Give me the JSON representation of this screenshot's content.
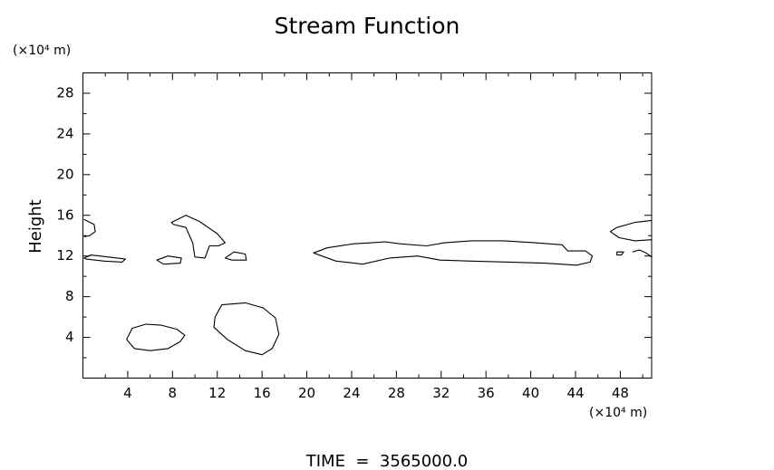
{
  "chart_data": {
    "type": "contour",
    "title": "Stream Function",
    "ylabel": "Height",
    "yunit": "(×10⁴ m)",
    "xunit": "(×10⁴ m)",
    "footer": "TIME  =  3565000.0",
    "xlim": [
      0,
      50.8
    ],
    "ylim": [
      0,
      30
    ],
    "xticks": [
      4,
      8,
      12,
      16,
      20,
      24,
      28,
      32,
      36,
      40,
      44,
      48
    ],
    "xminorticks": [
      2,
      6,
      10,
      14,
      18,
      22,
      26,
      30,
      34,
      38,
      42,
      46,
      50
    ],
    "yticks": [
      4,
      8,
      12,
      16,
      20,
      24,
      28
    ],
    "yminorticks": [
      2,
      6,
      10,
      14,
      18,
      22,
      26
    ],
    "color": "#000000",
    "contours": [
      {
        "closed": true,
        "x": [
          3.9,
          4.4,
          5.6,
          7.0,
          8.4,
          9.1,
          8.7,
          7.6,
          6.0,
          4.6
        ],
        "y": [
          3.8,
          4.9,
          5.3,
          5.2,
          4.8,
          4.2,
          3.6,
          2.9,
          2.7,
          2.9
        ]
      },
      {
        "closed": true,
        "x": [
          12.4,
          14.5,
          16.1,
          17.2,
          17.5,
          16.9,
          16.0,
          14.5,
          12.9,
          11.7,
          11.8
        ],
        "y": [
          7.2,
          7.4,
          6.9,
          5.9,
          4.3,
          2.9,
          2.3,
          2.7,
          3.8,
          5.0,
          6.0
        ]
      },
      {
        "closed": true,
        "x": [
          7.9,
          9.2,
          10.4,
          12.0,
          12.7,
          12.1,
          11.3,
          10.9,
          10.0,
          9.8,
          9.2,
          8.1
        ],
        "y": [
          15.3,
          16.0,
          15.4,
          14.2,
          13.3,
          13.0,
          13.0,
          11.8,
          11.9,
          13.3,
          14.8,
          15.1
        ]
      },
      {
        "closed": true,
        "x": [
          6.6,
          7.6,
          8.8,
          8.7,
          7.2
        ],
        "y": [
          11.6,
          12.0,
          11.8,
          11.3,
          11.2
        ]
      },
      {
        "closed": true,
        "x": [
          12.7,
          13.5,
          14.5,
          14.6,
          13.3
        ],
        "y": [
          11.8,
          12.4,
          12.2,
          11.6,
          11.6
        ]
      },
      {
        "closed": false,
        "x": [
          0.1,
          1.0,
          1.1,
          0.6,
          0.1
        ],
        "y": [
          15.6,
          15.1,
          14.4,
          14.0,
          13.9
        ]
      },
      {
        "closed": true,
        "x": [
          0.1,
          0.7,
          2.3,
          3.8,
          3.5,
          1.9,
          0.3
        ],
        "y": [
          11.8,
          12.1,
          11.9,
          11.7,
          11.4,
          11.5,
          11.7
        ]
      },
      {
        "closed": true,
        "x": [
          20.6,
          21.8,
          24.2,
          25.8,
          27.0,
          28.3,
          30.7,
          32.3,
          34.7,
          37.6,
          40.4,
          42.8,
          43.3,
          44.9,
          45.5,
          45.3,
          44.1,
          41.2,
          38.0,
          34.7,
          31.9,
          29.9,
          27.4,
          25.0,
          22.6
        ],
        "y": [
          12.3,
          12.8,
          13.2,
          13.3,
          13.4,
          13.2,
          13.0,
          13.3,
          13.5,
          13.5,
          13.3,
          13.1,
          12.5,
          12.5,
          12.0,
          11.4,
          11.1,
          11.3,
          11.4,
          11.5,
          11.6,
          12.0,
          11.8,
          11.2,
          11.5
        ]
      },
      {
        "closed": false,
        "x": [
          50.8,
          49.3,
          47.7,
          47.1,
          47.9,
          49.3,
          50.8
        ],
        "y": [
          15.5,
          15.3,
          14.8,
          14.4,
          13.8,
          13.5,
          13.6
        ]
      },
      {
        "closed": true,
        "x": [
          47.7,
          48.3,
          48.1,
          47.7
        ],
        "y": [
          12.4,
          12.4,
          12.1,
          12.1
        ]
      },
      {
        "closed": false,
        "x": [
          49.1,
          49.7,
          50.3,
          50.8
        ],
        "y": [
          12.4,
          12.6,
          12.3,
          11.9
        ]
      }
    ]
  }
}
